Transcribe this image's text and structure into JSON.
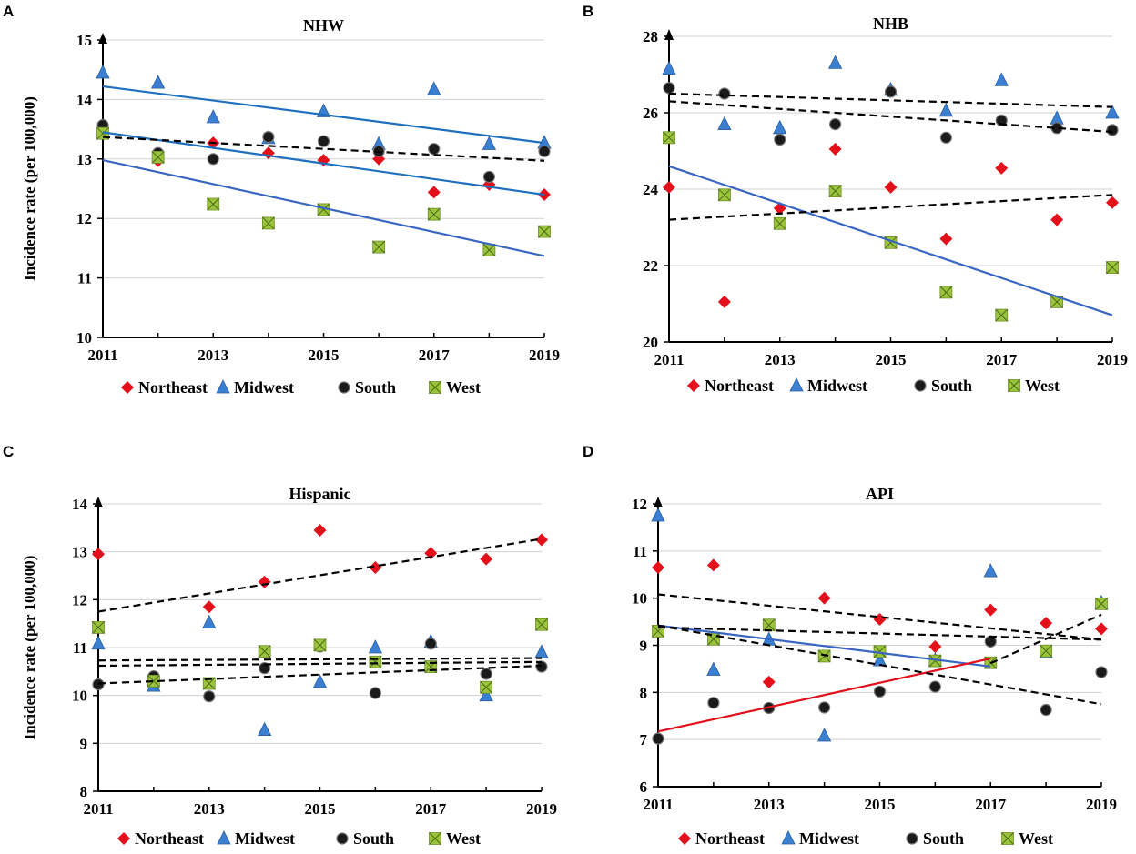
{
  "chart_data": [
    {
      "type": "scatter",
      "panel": "A",
      "title": "NHW",
      "xlabel": "",
      "ylabel": "Incidence rate (per 100,000)",
      "xlim": [
        2011,
        2019
      ],
      "ylim": [
        10,
        15
      ],
      "xticks": [
        2011,
        2013,
        2015,
        2017,
        2019
      ],
      "yticks": [
        10,
        11,
        12,
        13,
        14,
        15
      ],
      "x": [
        2011,
        2012,
        2013,
        2014,
        2015,
        2016,
        2017,
        2018,
        2019
      ],
      "series": [
        {
          "name": "Northeast",
          "values": [
            13.45,
            12.97,
            13.27,
            13.1,
            12.98,
            13.0,
            12.44,
            12.57,
            12.4
          ]
        },
        {
          "name": "Midwest",
          "values": [
            14.45,
            14.28,
            13.7,
            13.35,
            13.8,
            13.25,
            14.17,
            13.25,
            13.27
          ]
        },
        {
          "name": "South",
          "values": [
            13.57,
            13.1,
            13.0,
            13.37,
            13.3,
            13.13,
            13.17,
            12.7,
            13.13
          ]
        },
        {
          "name": "West",
          "values": [
            13.43,
            13.03,
            12.24,
            11.92,
            12.15,
            11.52,
            12.07,
            11.47,
            11.78
          ]
        }
      ],
      "trendlines": [
        {
          "style": "solid",
          "color": "#1f6fbf",
          "from": [
            2011,
            14.22
          ],
          "to": [
            2019,
            13.27
          ]
        },
        {
          "style": "solid",
          "color": "#1f6fbf",
          "from": [
            2011,
            13.45
          ],
          "to": [
            2019,
            12.4
          ]
        },
        {
          "style": "solid",
          "color": "#3a66c4",
          "from": [
            2011,
            12.98
          ],
          "to": [
            2019,
            11.37
          ]
        },
        {
          "style": "dashed",
          "color": "#000000",
          "from": [
            2011,
            13.37
          ],
          "to": [
            2019,
            12.97
          ]
        }
      ],
      "legend": [
        "Northeast",
        "Midwest",
        "South",
        "West"
      ]
    },
    {
      "type": "scatter",
      "panel": "B",
      "title": "NHB",
      "xlabel": "",
      "ylabel": "",
      "xlim": [
        2011,
        2019
      ],
      "ylim": [
        20,
        28
      ],
      "xticks": [
        2011,
        2013,
        2015,
        2017,
        2019
      ],
      "yticks": [
        20,
        22,
        24,
        26,
        28
      ],
      "x": [
        2011,
        2012,
        2013,
        2014,
        2015,
        2016,
        2017,
        2018,
        2019
      ],
      "series": [
        {
          "name": "Northeast",
          "values": [
            24.05,
            21.05,
            23.5,
            25.05,
            24.05,
            22.7,
            24.55,
            23.2,
            23.65
          ]
        },
        {
          "name": "Midwest",
          "values": [
            27.15,
            25.7,
            25.6,
            27.3,
            26.6,
            26.05,
            26.85,
            25.85,
            26.0
          ]
        },
        {
          "name": "South",
          "values": [
            26.65,
            26.5,
            25.3,
            25.7,
            26.55,
            25.35,
            25.8,
            25.6,
            25.55
          ]
        },
        {
          "name": "West",
          "values": [
            25.35,
            23.85,
            23.1,
            23.95,
            22.6,
            21.3,
            20.7,
            21.05,
            21.95
          ]
        }
      ],
      "trendlines": [
        {
          "style": "solid",
          "color": "#3a66c4",
          "from": [
            2011,
            24.6
          ],
          "to": [
            2019,
            20.7
          ]
        },
        {
          "style": "dashed",
          "color": "#000000",
          "from": [
            2011,
            26.5
          ],
          "to": [
            2019,
            26.15
          ]
        },
        {
          "style": "dashed",
          "color": "#000000",
          "from": [
            2011,
            26.3
          ],
          "to": [
            2019,
            25.5
          ]
        },
        {
          "style": "dashed",
          "color": "#000000",
          "from": [
            2011,
            23.2
          ],
          "to": [
            2019,
            23.85
          ]
        }
      ],
      "legend": [
        "Northeast",
        "Midwest",
        "South",
        "West"
      ]
    },
    {
      "type": "scatter",
      "panel": "C",
      "title": "Hispanic",
      "xlabel": "",
      "ylabel": "Incidence rate (per 100,000)",
      "xlim": [
        2011,
        2019
      ],
      "ylim": [
        8,
        14
      ],
      "xticks": [
        2011,
        2013,
        2015,
        2017,
        2019
      ],
      "yticks": [
        8,
        9,
        10,
        11,
        12,
        13,
        14
      ],
      "x": [
        2011,
        2012,
        2013,
        2014,
        2015,
        2016,
        2017,
        2018,
        2019
      ],
      "series": [
        {
          "name": "Northeast",
          "values": [
            12.95,
            10.25,
            11.85,
            12.37,
            13.45,
            12.67,
            12.97,
            12.85,
            13.25
          ]
        },
        {
          "name": "Midwest",
          "values": [
            11.08,
            10.2,
            11.52,
            9.28,
            10.28,
            11.0,
            11.12,
            10.0,
            10.9
          ]
        },
        {
          "name": "South",
          "values": [
            10.23,
            10.4,
            9.98,
            10.57,
            11.02,
            10.05,
            11.08,
            10.45,
            10.6
          ]
        },
        {
          "name": "West",
          "values": [
            11.42,
            10.3,
            10.25,
            10.92,
            11.05,
            10.7,
            10.6,
            10.17,
            11.48
          ]
        }
      ],
      "trendlines": [
        {
          "style": "dashed",
          "color": "#000000",
          "from": [
            2011,
            11.75
          ],
          "to": [
            2019,
            13.27
          ]
        },
        {
          "style": "dashed",
          "color": "#000000",
          "from": [
            2011,
            10.73
          ],
          "to": [
            2019,
            10.78
          ]
        },
        {
          "style": "dashed",
          "color": "#000000",
          "from": [
            2011,
            10.62
          ],
          "to": [
            2019,
            10.7
          ]
        },
        {
          "style": "dashed",
          "color": "#000000",
          "from": [
            2011,
            10.25
          ],
          "to": [
            2019,
            10.62
          ]
        }
      ],
      "legend": [
        "Northeast",
        "Midwest",
        "South",
        "West"
      ]
    },
    {
      "type": "scatter",
      "panel": "D",
      "title": "API",
      "xlabel": "",
      "ylabel": "",
      "xlim": [
        2011,
        2019
      ],
      "ylim": [
        6,
        12
      ],
      "xticks": [
        2011,
        2013,
        2015,
        2017,
        2019
      ],
      "yticks": [
        6,
        7,
        8,
        9,
        10,
        11,
        12
      ],
      "x": [
        2011,
        2012,
        2013,
        2014,
        2015,
        2016,
        2017,
        2018,
        2019
      ],
      "series": [
        {
          "name": "Northeast",
          "values": [
            10.65,
            10.7,
            8.22,
            10.0,
            9.55,
            8.97,
            9.75,
            9.47,
            9.35
          ]
        },
        {
          "name": "Midwest",
          "values": [
            11.75,
            8.48,
            9.12,
            7.08,
            8.68,
            8.68,
            10.57,
            8.85,
            9.9
          ]
        },
        {
          "name": "South",
          "values": [
            7.02,
            7.78,
            7.67,
            7.68,
            8.02,
            8.12,
            9.08,
            7.63,
            8.43
          ]
        },
        {
          "name": "West",
          "values": [
            9.3,
            9.13,
            9.43,
            8.77,
            8.87,
            8.67,
            8.63,
            8.88,
            9.88
          ]
        }
      ],
      "trendlines": [
        {
          "style": "solid",
          "color": "#3a66c4",
          "from": [
            2011,
            9.42
          ],
          "to": [
            2017,
            8.55
          ]
        },
        {
          "style": "solid",
          "color": "#e3101b",
          "from": [
            2011,
            7.17
          ],
          "to": [
            2017,
            8.72
          ]
        },
        {
          "style": "dashed",
          "color": "#000000",
          "from": [
            2011,
            10.08
          ],
          "to": [
            2019,
            9.12
          ]
        },
        {
          "style": "dashed",
          "color": "#000000",
          "from": [
            2011,
            9.38
          ],
          "to": [
            2019,
            9.12
          ]
        },
        {
          "style": "dashed",
          "color": "#000000",
          "from": [
            2011,
            9.42
          ],
          "to": [
            2019,
            7.75
          ]
        },
        {
          "style": "dashed",
          "color": "#000000",
          "from": [
            2017,
            8.62
          ],
          "to": [
            2019,
            9.65
          ]
        }
      ],
      "legend": [
        "Northeast",
        "Midwest",
        "South",
        "West"
      ]
    }
  ],
  "colors": {
    "Northeast": "#e3101b",
    "Midwest": "#3a7fd0",
    "South": "#1a1a1a",
    "West": "#9bc43c",
    "grid": "#d0d0d0"
  }
}
